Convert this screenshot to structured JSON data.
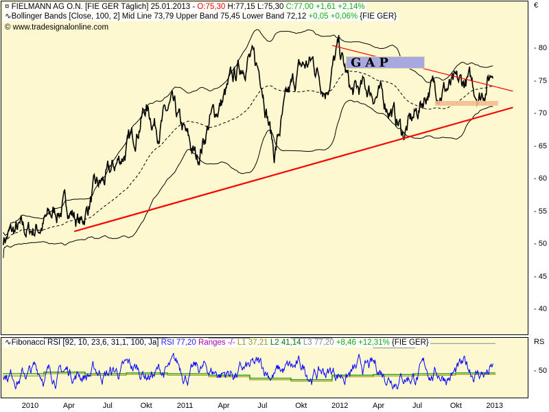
{
  "header": {
    "line1": {
      "symbol": "FIELMANN AG O.N. [FIE GER  Täglich] 25.01.2013 -",
      "open": "O:75,30",
      "high_low": "H:77,15 L:75,30",
      "close": "C:77,00 +1,61 +2,14%"
    },
    "line2": {
      "text": "Bollinger Bands [Close, 100, 2] Mid Line 73,79 Upper Band 75,45 Lower Band 72,12",
      "change": "+0,05 +0,06%",
      "suffix": "{FIE GER}"
    },
    "line3": "www.tradesignalonline.com"
  },
  "annotation": {
    "gap_label": "GAP"
  },
  "currency": "€",
  "price_axis": [
    "80",
    "75",
    "70",
    "65",
    "60",
    "55",
    "50",
    "45",
    "40"
  ],
  "rsi": {
    "label": "Fibonacci RSI [92, 10, 23,6, 31,1, 100, Ja]",
    "rsi": "RSI 77,20",
    "ranges": "Ranges -/-",
    "l1": "L1 37,21",
    "l2": "L2 41,14",
    "l3": "L3 77,20",
    "change": "+8,46 +12,31%",
    "suffix": "{FIE GER}",
    "axis_title": "RS",
    "axis_50": "50"
  },
  "time_axis": [
    "2010",
    "Apr",
    "Jul",
    "Okt",
    "2011",
    "Apr",
    "Jul",
    "Okt",
    "2012",
    "Apr",
    "Jul",
    "Okt",
    "2013"
  ],
  "colors": {
    "background": "#fdf8cf",
    "price": "#000000",
    "trendline": "#ff0000",
    "rsi": "#0000ff",
    "l1": "#999900",
    "l2": "#008800",
    "l3": "#888888",
    "gap_box": "#a8a8e0",
    "support_box": "#f5bb90"
  },
  "chart_data": {
    "type": "line",
    "ylim": [
      36,
      82
    ],
    "monthly_close": [
      [
        "2009-11",
        51
      ],
      [
        "2009-12",
        52
      ],
      [
        "2010-01",
        52
      ],
      [
        "2010-02",
        53
      ],
      [
        "2010-03",
        55
      ],
      [
        "2010-04",
        56
      ],
      [
        "2010-05",
        53
      ],
      [
        "2010-06",
        58
      ],
      [
        "2010-07",
        60
      ],
      [
        "2010-08",
        63
      ],
      [
        "2010-09",
        66
      ],
      [
        "2010-10",
        71
      ],
      [
        "2010-11",
        68
      ],
      [
        "2010-12",
        71
      ],
      [
        "2011-01",
        67
      ],
      [
        "2011-02",
        63
      ],
      [
        "2011-03",
        69
      ],
      [
        "2011-04",
        72
      ],
      [
        "2011-05",
        76
      ],
      [
        "2011-06",
        79
      ],
      [
        "2011-07",
        76
      ],
      [
        "2011-08",
        64
      ],
      [
        "2011-09",
        72
      ],
      [
        "2011-10",
        77
      ],
      [
        "2011-11",
        78
      ],
      [
        "2011-12",
        74
      ],
      [
        "2012-01",
        80
      ],
      [
        "2012-02",
        73
      ],
      [
        "2012-03",
        74
      ],
      [
        "2012-04",
        73
      ],
      [
        "2012-05",
        71
      ],
      [
        "2012-06",
        67
      ],
      [
        "2012-07",
        70
      ],
      [
        "2012-08",
        74
      ],
      [
        "2012-09",
        74
      ],
      [
        "2012-10",
        74
      ],
      [
        "2012-11",
        75
      ],
      [
        "2012-12",
        73
      ],
      [
        "2013-01",
        77
      ]
    ],
    "trendlines": [
      {
        "from": [
          "2010-05",
          52
        ],
        "to": [
          "2013-03",
          71
        ]
      },
      {
        "from": [
          "2012-01",
          80.5
        ],
        "to": [
          "2013-03",
          73.5
        ]
      }
    ]
  }
}
